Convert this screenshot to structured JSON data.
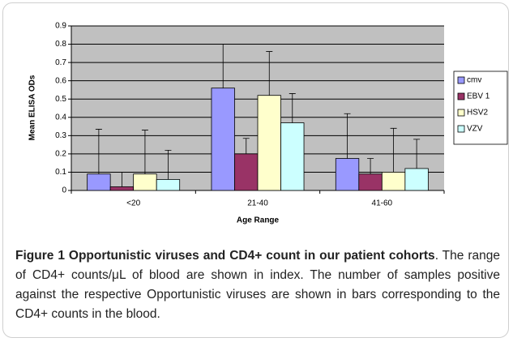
{
  "chart_data": {
    "type": "bar",
    "categories": [
      "<20",
      "21-40",
      "41-60"
    ],
    "series": [
      {
        "name": "cmv",
        "color": "#9999ff",
        "values": [
          0.09,
          0.56,
          0.175
        ],
        "errors": [
          0.245,
          0.24,
          0.245
        ]
      },
      {
        "name": "EBV 1",
        "color": "#993366",
        "values": [
          0.02,
          0.2,
          0.09
        ],
        "errors": [
          0.08,
          0.085,
          0.085
        ]
      },
      {
        "name": "HSV2",
        "color": "#ffffcc",
        "values": [
          0.09,
          0.52,
          0.1
        ],
        "errors": [
          0.24,
          0.24,
          0.24
        ]
      },
      {
        "name": "VZV",
        "color": "#ccffff",
        "values": [
          0.06,
          0.37,
          0.12
        ],
        "errors": [
          0.16,
          0.16,
          0.16
        ]
      }
    ],
    "xlabel": "Age Range",
    "ylabel": "Mean ELISA ODs",
    "ylim": [
      0,
      0.9
    ],
    "yticks": [
      0,
      0.1,
      0.2,
      0.3,
      0.4,
      0.5,
      0.6,
      0.7,
      0.8,
      0.9
    ],
    "grid": true,
    "legend": "right"
  },
  "caption": {
    "title": "Figure 1 Opportunistic viruses and CD4+ count in our patient cohorts",
    "text": ". The range of CD4+ counts/μL of blood are shown in index. The number of samples positive against the respective Opportunistic viruses are shown in bars corresponding to the CD4+ counts in the blood."
  }
}
